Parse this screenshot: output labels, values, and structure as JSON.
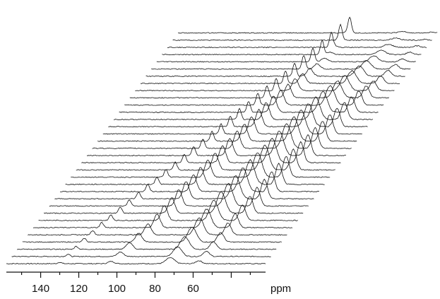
{
  "chart_data": {
    "type": "line",
    "subtype": "stacked-waterfall-spectra",
    "title": "",
    "xlabel": "ppm",
    "ylabel": "",
    "x_axis_reversed": true,
    "xlim": [
      158,
      22
    ],
    "x_ticks": [
      140,
      120,
      100,
      80,
      60
    ],
    "x_tick_labels": [
      "140",
      "120",
      "100",
      "80",
      "60"
    ],
    "grid": false,
    "legend": "none",
    "trace_count": 33,
    "line_color": "#111111",
    "peak_series": [
      {
        "name": "",
        "position_ppm": [
          130,
          128.5,
          127,
          125.5,
          124,
          122,
          120,
          118,
          116,
          114,
          112,
          110,
          108,
          106,
          104,
          102,
          100,
          98,
          96,
          94,
          92,
          90,
          88,
          86,
          84,
          82,
          80,
          78,
          76,
          74,
          72,
          70,
          68
        ],
        "height": [
          0.2,
          0.3,
          0.4,
          0.5,
          0.6,
          0.7,
          0.75,
          0.8,
          0.85,
          0.9,
          0.95,
          1,
          1.05,
          1.1,
          1.15,
          1.2,
          1.25,
          1.3,
          1.35,
          1.4,
          1.45,
          1.5,
          1.55,
          1.6,
          1.65,
          1.7,
          1.75,
          1.8,
          1.85,
          1.9,
          1.95,
          2,
          2.1
        ]
      },
      {
        "name": "",
        "position_ppm": [
          103,
          101,
          99,
          97,
          95,
          93,
          92,
          91,
          90,
          89,
          88,
          87,
          86,
          85,
          84,
          83,
          82,
          81,
          80,
          79,
          78,
          77,
          76,
          75,
          74,
          73,
          72,
          71,
          70,
          70,
          70,
          70,
          70
        ],
        "height": [
          0.3,
          0.6,
          0.9,
          1.2,
          1.5,
          1.8,
          2,
          2.1,
          2.2,
          2.3,
          2.3,
          2.3,
          2.3,
          2.3,
          2.3,
          2.3,
          2.3,
          2.3,
          2.3,
          2.3,
          2.3,
          2.2,
          2,
          1.8,
          1.6,
          1.3,
          1,
          0.7,
          0.5,
          0.3,
          0.2,
          0.1,
          0.1
        ]
      },
      {
        "name": "",
        "position_ppm": [
          72,
          71,
          70,
          69,
          68,
          67,
          66,
          65,
          64,
          63,
          62,
          61,
          60,
          59,
          58,
          57,
          56,
          55,
          54,
          53,
          52,
          51,
          50,
          49,
          48,
          47,
          46,
          45,
          44,
          43,
          42,
          41,
          40
        ],
        "height": [
          0.8,
          1.3,
          1.7,
          2,
          2.3,
          2.5,
          2.7,
          2.9,
          3,
          3.1,
          3.2,
          3.3,
          3.3,
          3.3,
          3.3,
          3.3,
          3.3,
          3.3,
          3.2,
          3.1,
          3,
          2.8,
          2.6,
          2.3,
          2,
          1.7,
          1.4,
          1.1,
          0.8,
          0.6,
          0.4,
          0.3,
          0.2
        ]
      },
      {
        "name": "",
        "position_ppm": [
          57,
          56,
          55,
          54,
          53,
          52,
          51,
          50,
          49,
          48,
          47,
          46,
          45,
          44,
          43,
          42,
          41,
          40,
          39,
          38,
          37,
          36,
          35,
          34,
          33,
          32,
          31,
          30,
          29,
          28,
          27,
          26,
          25
        ],
        "height": [
          0.4,
          0.7,
          1,
          1.3,
          1.6,
          1.9,
          2.1,
          2.3,
          2.5,
          2.6,
          2.7,
          2.8,
          2.8,
          2.8,
          2.8,
          2.8,
          2.8,
          2.7,
          2.6,
          2.5,
          2.3,
          2.1,
          1.9,
          1.6,
          1.3,
          1,
          0.8,
          0.6,
          0.4,
          0.3,
          0.2,
          0.1,
          0.1
        ]
      }
    ]
  }
}
